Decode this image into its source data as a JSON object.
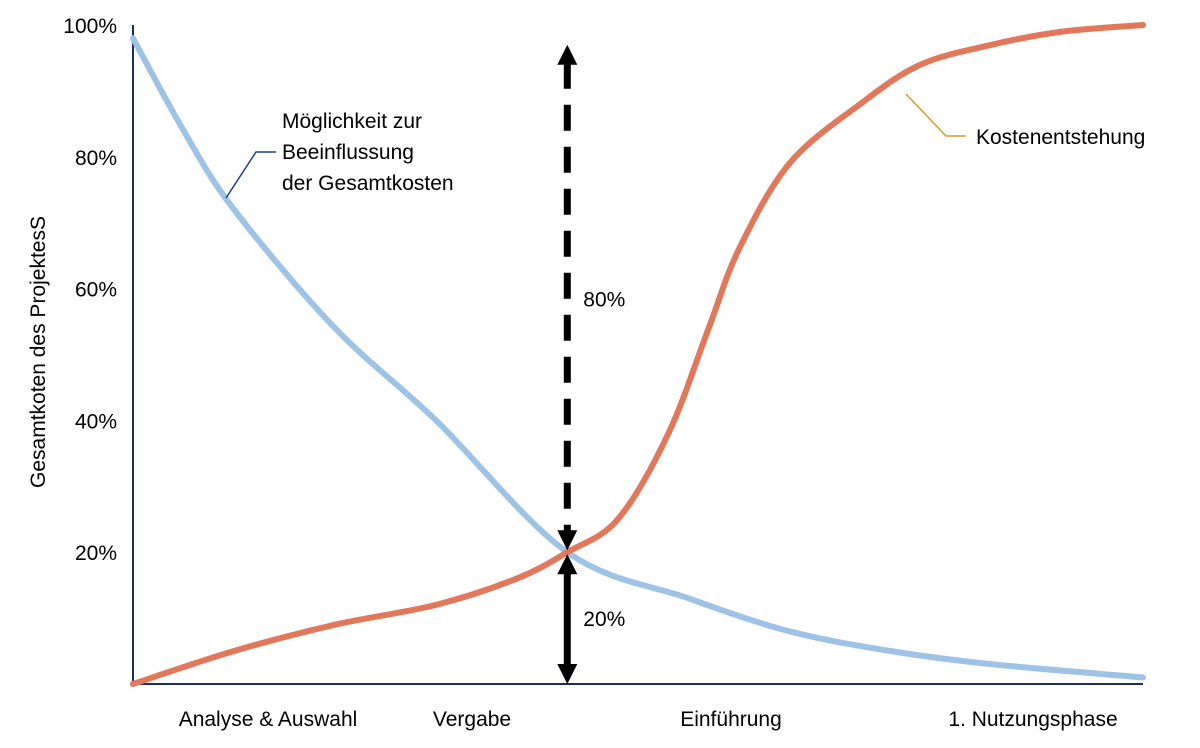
{
  "chart_data": {
    "type": "line",
    "title": "",
    "xlabel": "",
    "ylabel": "Gesamtkoten des ProjektesS",
    "ylim": [
      0,
      100
    ],
    "y_ticks": [
      {
        "value": 20,
        "label": "20%"
      },
      {
        "value": 40,
        "label": "40%"
      },
      {
        "value": 60,
        "label": "60%"
      },
      {
        "value": 80,
        "label": "80%"
      },
      {
        "value": 100,
        "label": "100%"
      }
    ],
    "categories": [
      "Analyse & Auswahl",
      "Vergabe",
      "Einführung",
      "1. Nutzungsphase"
    ],
    "grid": false,
    "colors": {
      "influence": "#9dc3e6",
      "cost": "#e2775a",
      "axis": "#1f2d5a",
      "leader_influence": "#1f3f8f",
      "leader_cost": "#c9a227",
      "arrow": "#000000"
    },
    "series": [
      {
        "name": "Möglichkeit zur Beeinflussung der Gesamtkosten",
        "label_lines": [
          "Möglichkeit zur",
          "Beeinflussung",
          "der Gesamtkosten"
        ],
        "x": [
          0,
          5,
          10,
          20,
          30,
          43,
          55,
          65,
          75,
          85,
          100
        ],
        "y": [
          98,
          84,
          72,
          54,
          40,
          20,
          13,
          8,
          5,
          3,
          1
        ]
      },
      {
        "name": "Kostenentstehung",
        "label_lines": [
          "Kostenentstehung"
        ],
        "x": [
          0,
          10,
          20,
          30,
          38,
          43,
          48,
          53,
          57,
          60,
          65,
          72,
          78,
          85,
          92,
          100
        ],
        "y": [
          0,
          5,
          9,
          12,
          16,
          20,
          25,
          38,
          54,
          66,
          79,
          88,
          94,
          97,
          99,
          100
        ]
      }
    ],
    "annotations": [
      {
        "label": "80%",
        "x": 43,
        "from": 20,
        "to": 97,
        "style": "dashed"
      },
      {
        "label": "20%",
        "x": 43,
        "from": 0,
        "to": 20,
        "style": "solid"
      }
    ]
  }
}
